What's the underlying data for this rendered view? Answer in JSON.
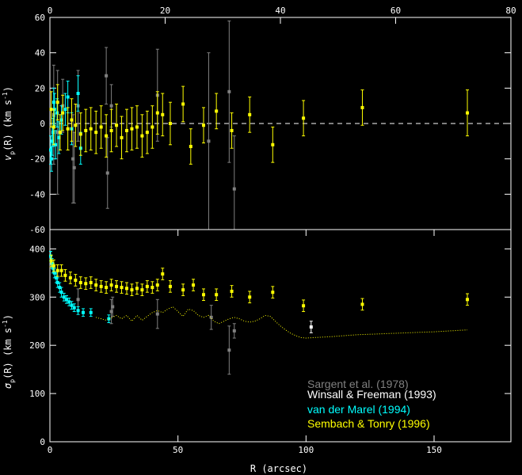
{
  "chart_data": [
    {
      "type": "scatter",
      "ylabel_main": "v",
      "ylabel_sub": "p",
      "ylabel_rest": "(R)  (km s",
      "ylabel_sup": "-1",
      "ylabel_close": ")",
      "top_axis_ticks": [
        "0",
        "20",
        "40",
        "60",
        "80"
      ],
      "top_axis_range": [
        0,
        80
      ],
      "xlim": [
        0,
        180
      ],
      "ylim": [
        -60,
        60
      ],
      "yticks": [
        "-60",
        "-40",
        "-20",
        "0",
        "20",
        "40",
        "60"
      ],
      "zero_line": true,
      "series": [
        {
          "color": "#808080",
          "points": [
            {
              "x": 1.5,
              "y": 5,
              "err": 28
            },
            {
              "x": 3,
              "y": -5,
              "err": 35
            },
            {
              "x": 5,
              "y": 10,
              "err": 15
            },
            {
              "x": 9,
              "y": -20,
              "err": 25
            },
            {
              "x": 9.5,
              "y": -25,
              "err": 20
            },
            {
              "x": 11,
              "y": 10,
              "err": 20
            },
            {
              "x": 22,
              "y": 27,
              "err": 16
            },
            {
              "x": 22.5,
              "y": -28,
              "err": 20
            },
            {
              "x": 24,
              "y": 10,
              "err": 12
            },
            {
              "x": 42,
              "y": 16,
              "err": 26
            },
            {
              "x": 62,
              "y": -10,
              "err": 50
            },
            {
              "x": 70,
              "y": 18,
              "err": 40
            },
            {
              "x": 72,
              "y": -37,
              "err": 30
            }
          ]
        },
        {
          "color": "#00ffff",
          "points": [
            {
              "x": 0.3,
              "y": -15,
              "err": 8
            },
            {
              "x": 0.6,
              "y": -20,
              "err": 7
            },
            {
              "x": 0.9,
              "y": -10,
              "err": 8
            },
            {
              "x": 1.2,
              "y": -5,
              "err": 8
            },
            {
              "x": 1.5,
              "y": 12,
              "err": 8
            },
            {
              "x": 1.8,
              "y": 8,
              "err": 9
            },
            {
              "x": 2.2,
              "y": -12,
              "err": 8
            },
            {
              "x": 2.8,
              "y": 6,
              "err": 8
            },
            {
              "x": 3.5,
              "y": -8,
              "err": 9
            },
            {
              "x": 4.5,
              "y": 2,
              "err": 8
            },
            {
              "x": 6,
              "y": 8,
              "err": 9
            },
            {
              "x": 7,
              "y": 15,
              "err": 9
            },
            {
              "x": 8.5,
              "y": -3,
              "err": 9
            },
            {
              "x": 11,
              "y": 17,
              "err": 10
            },
            {
              "x": 12,
              "y": -14,
              "err": 9
            }
          ]
        },
        {
          "color": "#ffff00",
          "points": [
            {
              "x": 0.5,
              "y": 8,
              "err": 10
            },
            {
              "x": 1.5,
              "y": -2,
              "err": 10
            },
            {
              "x": 3,
              "y": 12,
              "err": 10
            },
            {
              "x": 4,
              "y": -5,
              "err": 10
            },
            {
              "x": 5,
              "y": 6,
              "err": 10
            },
            {
              "x": 7,
              "y": -3,
              "err": 12
            },
            {
              "x": 8.5,
              "y": 2,
              "err": 12
            },
            {
              "x": 10,
              "y": -1,
              "err": 12
            },
            {
              "x": 12,
              "y": -6,
              "err": 12
            },
            {
              "x": 14,
              "y": -4,
              "err": 12
            },
            {
              "x": 16,
              "y": -3,
              "err": 12
            },
            {
              "x": 18,
              "y": -5,
              "err": 12
            },
            {
              "x": 20,
              "y": -2,
              "err": 12
            },
            {
              "x": 22,
              "y": -7,
              "err": 12
            },
            {
              "x": 24,
              "y": -4,
              "err": 12
            },
            {
              "x": 26,
              "y": -1,
              "err": 12
            },
            {
              "x": 28,
              "y": -8,
              "err": 12
            },
            {
              "x": 30,
              "y": -4,
              "err": 12
            },
            {
              "x": 32,
              "y": -3,
              "err": 12
            },
            {
              "x": 34,
              "y": -2,
              "err": 12
            },
            {
              "x": 36,
              "y": -7,
              "err": 12
            },
            {
              "x": 38,
              "y": -5,
              "err": 12
            },
            {
              "x": 40,
              "y": -2,
              "err": 12
            },
            {
              "x": 42,
              "y": 6,
              "err": 12
            },
            {
              "x": 44,
              "y": 5,
              "err": 12
            },
            {
              "x": 47,
              "y": 0,
              "err": 12
            },
            {
              "x": 52,
              "y": 11,
              "err": 10
            },
            {
              "x": 55,
              "y": -13,
              "err": 10
            },
            {
              "x": 60,
              "y": -1,
              "err": 10
            },
            {
              "x": 65,
              "y": 7,
              "err": 10
            },
            {
              "x": 71,
              "y": -4,
              "err": 10
            },
            {
              "x": 78,
              "y": 5,
              "err": 10
            },
            {
              "x": 87,
              "y": -12,
              "err": 10
            },
            {
              "x": 99,
              "y": 3,
              "err": 10
            },
            {
              "x": 122,
              "y": 9,
              "err": 10
            },
            {
              "x": 163,
              "y": 6,
              "err": 13
            }
          ]
        }
      ]
    },
    {
      "type": "scatter",
      "ylabel_main": "σ",
      "ylabel_sub": "p",
      "ylabel_rest": "(R)  (km s",
      "ylabel_sup": "-1",
      "ylabel_close": ")",
      "xlabel": "R  (arcsec)",
      "xlim": [
        0,
        180
      ],
      "xticks": [
        "0",
        "50",
        "100",
        "150"
      ],
      "ylim": [
        0,
        440
      ],
      "yticks": [
        "0",
        "100",
        "200",
        "300",
        "400"
      ],
      "series": [
        {
          "name": "Sargent et al. (1978)",
          "color": "#808080",
          "points": [
            {
              "x": 11,
              "y": 295,
              "err": 22
            },
            {
              "x": 24,
              "y": 270,
              "err": 25
            },
            {
              "x": 24.5,
              "y": 280,
              "err": 20
            },
            {
              "x": 42,
              "y": 265,
              "err": 30
            },
            {
              "x": 63,
              "y": 258,
              "err": 25
            },
            {
              "x": 70,
              "y": 190,
              "err": 50
            },
            {
              "x": 72,
              "y": 230,
              "err": 15
            }
          ]
        },
        {
          "name": "Winsall & Freeman (1993)",
          "color": "#ffffff",
          "points": [
            {
              "x": 102,
              "y": 238,
              "err": 12
            }
          ]
        },
        {
          "name": "van der Marel (1994)",
          "color": "#00ffff",
          "points": [
            {
              "x": 0.3,
              "y": 385,
              "err": 10
            },
            {
              "x": 0.8,
              "y": 370,
              "err": 10
            },
            {
              "x": 1.2,
              "y": 360,
              "err": 10
            },
            {
              "x": 1.8,
              "y": 350,
              "err": 10
            },
            {
              "x": 2.5,
              "y": 340,
              "err": 10
            },
            {
              "x": 3,
              "y": 330,
              "err": 10
            },
            {
              "x": 3.8,
              "y": 320,
              "err": 10
            },
            {
              "x": 4.5,
              "y": 310,
              "err": 10
            },
            {
              "x": 5.5,
              "y": 300,
              "err": 8
            },
            {
              "x": 6.5,
              "y": 295,
              "err": 8
            },
            {
              "x": 7.5,
              "y": 290,
              "err": 8
            },
            {
              "x": 8.5,
              "y": 283,
              "err": 8
            },
            {
              "x": 9.5,
              "y": 278,
              "err": 8
            },
            {
              "x": 11,
              "y": 272,
              "err": 8
            },
            {
              "x": 13,
              "y": 268,
              "err": 8
            },
            {
              "x": 16,
              "y": 268,
              "err": 8
            },
            {
              "x": 23,
              "y": 255,
              "err": 8
            }
          ]
        },
        {
          "name": "Sembach & Tonry (1996)",
          "color": "#ffff00",
          "points": [
            {
              "x": 0.5,
              "y": 375,
              "err": 12
            },
            {
              "x": 1.5,
              "y": 365,
              "err": 12
            },
            {
              "x": 3,
              "y": 355,
              "err": 12
            },
            {
              "x": 4.5,
              "y": 355,
              "err": 12
            },
            {
              "x": 6,
              "y": 345,
              "err": 12
            },
            {
              "x": 8,
              "y": 340,
              "err": 12
            },
            {
              "x": 10,
              "y": 335,
              "err": 12
            },
            {
              "x": 12,
              "y": 330,
              "err": 12
            },
            {
              "x": 14,
              "y": 328,
              "err": 12
            },
            {
              "x": 16,
              "y": 330,
              "err": 12
            },
            {
              "x": 18,
              "y": 325,
              "err": 12
            },
            {
              "x": 20,
              "y": 322,
              "err": 12
            },
            {
              "x": 22,
              "y": 320,
              "err": 12
            },
            {
              "x": 24,
              "y": 325,
              "err": 12
            },
            {
              "x": 26,
              "y": 322,
              "err": 12
            },
            {
              "x": 28,
              "y": 320,
              "err": 12
            },
            {
              "x": 30,
              "y": 318,
              "err": 12
            },
            {
              "x": 32,
              "y": 315,
              "err": 12
            },
            {
              "x": 34,
              "y": 318,
              "err": 12
            },
            {
              "x": 36,
              "y": 315,
              "err": 12
            },
            {
              "x": 38,
              "y": 322,
              "err": 12
            },
            {
              "x": 40,
              "y": 320,
              "err": 12
            },
            {
              "x": 42,
              "y": 325,
              "err": 12
            },
            {
              "x": 44,
              "y": 348,
              "err": 12
            },
            {
              "x": 47,
              "y": 322,
              "err": 12
            },
            {
              "x": 52,
              "y": 315,
              "err": 12
            },
            {
              "x": 56,
              "y": 325,
              "err": 12
            },
            {
              "x": 60,
              "y": 305,
              "err": 12
            },
            {
              "x": 65,
              "y": 305,
              "err": 12
            },
            {
              "x": 71,
              "y": 312,
              "err": 12
            },
            {
              "x": 78,
              "y": 300,
              "err": 12
            },
            {
              "x": 87,
              "y": 310,
              "err": 12
            },
            {
              "x": 99,
              "y": 282,
              "err": 12
            },
            {
              "x": 122,
              "y": 285,
              "err": 12
            },
            {
              "x": 163,
              "y": 295,
              "err": 12
            }
          ]
        },
        {
          "color": "#ffff00",
          "style": "dotted-line",
          "points": [
            {
              "x": 18,
              "y": 258
            },
            {
              "x": 22,
              "y": 252
            },
            {
              "x": 26,
              "y": 262
            },
            {
              "x": 28,
              "y": 255
            },
            {
              "x": 30,
              "y": 262
            },
            {
              "x": 32,
              "y": 250
            },
            {
              "x": 34,
              "y": 262
            },
            {
              "x": 36,
              "y": 252
            },
            {
              "x": 38,
              "y": 260
            },
            {
              "x": 40,
              "y": 268
            },
            {
              "x": 42,
              "y": 272
            },
            {
              "x": 44,
              "y": 268
            },
            {
              "x": 46,
              "y": 275
            },
            {
              "x": 48,
              "y": 280
            },
            {
              "x": 50,
              "y": 270
            },
            {
              "x": 52,
              "y": 260
            },
            {
              "x": 54,
              "y": 275
            },
            {
              "x": 56,
              "y": 272
            },
            {
              "x": 58,
              "y": 262
            },
            {
              "x": 60,
              "y": 258
            },
            {
              "x": 62,
              "y": 262
            },
            {
              "x": 64,
              "y": 250
            },
            {
              "x": 66,
              "y": 245
            },
            {
              "x": 68,
              "y": 250
            },
            {
              "x": 70,
              "y": 255
            },
            {
              "x": 72,
              "y": 258
            },
            {
              "x": 74,
              "y": 255
            },
            {
              "x": 76,
              "y": 250
            },
            {
              "x": 78,
              "y": 248
            },
            {
              "x": 80,
              "y": 250
            },
            {
              "x": 82,
              "y": 255
            },
            {
              "x": 84,
              "y": 262
            },
            {
              "x": 86,
              "y": 260
            },
            {
              "x": 88,
              "y": 250
            },
            {
              "x": 90,
              "y": 240
            },
            {
              "x": 92,
              "y": 232
            },
            {
              "x": 94,
              "y": 225
            },
            {
              "x": 96,
              "y": 220
            },
            {
              "x": 98,
              "y": 216
            },
            {
              "x": 100,
              "y": 215
            },
            {
              "x": 110,
              "y": 218
            },
            {
              "x": 120,
              "y": 222
            },
            {
              "x": 130,
              "y": 224
            },
            {
              "x": 140,
              "y": 226
            },
            {
              "x": 150,
              "y": 228
            },
            {
              "x": 163,
              "y": 232
            }
          ]
        }
      ],
      "legend_placement": "bottom-right"
    }
  ]
}
